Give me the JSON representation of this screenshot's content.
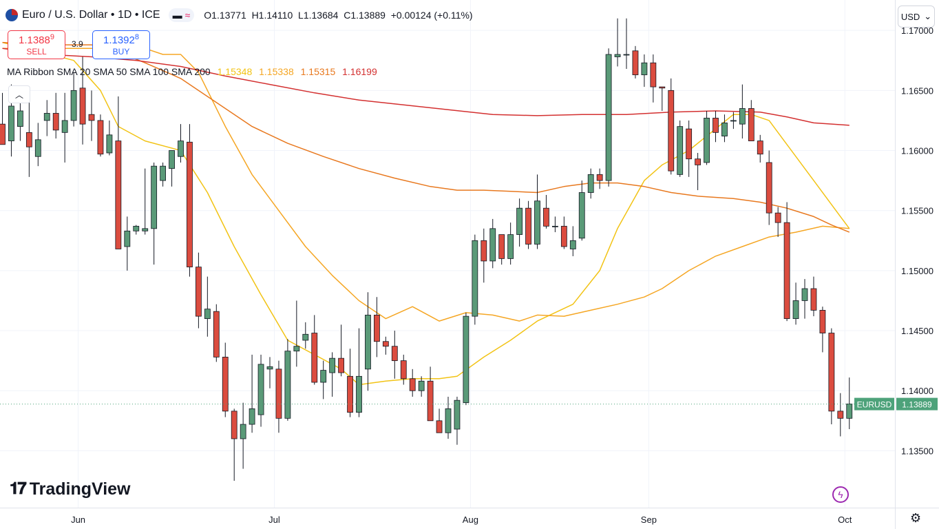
{
  "header": {
    "symbol_title": "Euro / U.S. Dollar • 1D • ICE",
    "ohlc": {
      "open": "O1.13771",
      "high": "H1.14110",
      "low": "L1.13684",
      "close": "C1.13889",
      "change": "+0.00124 (+0.11%)"
    }
  },
  "trade": {
    "sell_price_main": "1.1388",
    "sell_price_sup": "9",
    "sell_label": "SELL",
    "spread": "3.9",
    "buy_price_main": "1.1392",
    "buy_price_sup": "8",
    "buy_label": "BUY"
  },
  "indicator": {
    "label": "MA Ribbon SMA 20 SMA 50 SMA 100 SMA 200",
    "values": [
      "1.15348",
      "1.15338",
      "1.15315",
      "1.16199"
    ],
    "colors": [
      "#f2c314",
      "#f5a623",
      "#e8781e",
      "#d32f2f"
    ]
  },
  "currency_button": {
    "label": "USD",
    "icon": "chevron-down-icon"
  },
  "branding": {
    "logo_text": "TradingView"
  },
  "colors": {
    "up": "#5a9a78",
    "down": "#db4c3f",
    "price_tag": "#4da27a",
    "sma20": "#f2c314",
    "sma50": "#f5a623",
    "sma100": "#e8781e",
    "sma200": "#d32f2f",
    "grid": "#f0f3fa"
  },
  "chart_data": {
    "type": "candlestick",
    "symbol": "EURUSD",
    "last_price": 1.13889,
    "ylim": [
      1.1325,
      1.1715
    ],
    "y_ticks": [
      {
        "value": 1.135,
        "label": "1.13500"
      },
      {
        "value": 1.14,
        "label": "1.14000"
      },
      {
        "value": 1.145,
        "label": "1.14500"
      },
      {
        "value": 1.15,
        "label": "1.15000"
      },
      {
        "value": 1.155,
        "label": "1.15500"
      },
      {
        "value": 1.16,
        "label": "1.16000"
      },
      {
        "value": 1.165,
        "label": "1.16500"
      },
      {
        "value": 1.17,
        "label": "1.17000"
      }
    ],
    "x_ticks": [
      {
        "label": "Jun",
        "index": 8.5
      },
      {
        "label": "Jul",
        "index": 30.5
      },
      {
        "label": "Aug",
        "index": 52.5
      },
      {
        "label": "Sep",
        "index": 72.5
      },
      {
        "label": "Oct",
        "index": 94.5
      }
    ],
    "candles": [
      {
        "o": 1.1622,
        "h": 1.1648,
        "l": 1.1605,
        "c": 1.1605
      },
      {
        "o": 1.1608,
        "h": 1.1655,
        "l": 1.1595,
        "c": 1.1637
      },
      {
        "o": 1.162,
        "h": 1.1652,
        "l": 1.1608,
        "c": 1.1633
      },
      {
        "o": 1.1615,
        "h": 1.164,
        "l": 1.1578,
        "c": 1.1603
      },
      {
        "o": 1.1595,
        "h": 1.1623,
        "l": 1.1587,
        "c": 1.1609
      },
      {
        "o": 1.1625,
        "h": 1.1642,
        "l": 1.1612,
        "c": 1.1631
      },
      {
        "o": 1.1631,
        "h": 1.1648,
        "l": 1.161,
        "c": 1.1617
      },
      {
        "o": 1.1615,
        "h": 1.1648,
        "l": 1.159,
        "c": 1.1625
      },
      {
        "o": 1.1625,
        "h": 1.1665,
        "l": 1.162,
        "c": 1.165
      },
      {
        "o": 1.1652,
        "h": 1.1678,
        "l": 1.1605,
        "c": 1.1622
      },
      {
        "o": 1.163,
        "h": 1.165,
        "l": 1.1608,
        "c": 1.1625
      },
      {
        "o": 1.1625,
        "h": 1.163,
        "l": 1.1595,
        "c": 1.1597
      },
      {
        "o": 1.1598,
        "h": 1.1625,
        "l": 1.1596,
        "c": 1.1613
      },
      {
        "o": 1.1608,
        "h": 1.1645,
        "l": 1.152,
        "c": 1.1518
      },
      {
        "o": 1.152,
        "h": 1.1545,
        "l": 1.15,
        "c": 1.1533
      },
      {
        "o": 1.1533,
        "h": 1.1538,
        "l": 1.153,
        "c": 1.1537
      },
      {
        "o": 1.1533,
        "h": 1.1585,
        "l": 1.153,
        "c": 1.1535
      },
      {
        "o": 1.1535,
        "h": 1.159,
        "l": 1.1505,
        "c": 1.1587
      },
      {
        "o": 1.1575,
        "h": 1.159,
        "l": 1.157,
        "c": 1.1587
      },
      {
        "o": 1.1585,
        "h": 1.16,
        "l": 1.157,
        "c": 1.16
      },
      {
        "o": 1.1595,
        "h": 1.1622,
        "l": 1.159,
        "c": 1.1608
      },
      {
        "o": 1.1607,
        "h": 1.1622,
        "l": 1.1495,
        "c": 1.1503
      },
      {
        "o": 1.1503,
        "h": 1.1515,
        "l": 1.1452,
        "c": 1.1462
      },
      {
        "o": 1.146,
        "h": 1.1495,
        "l": 1.1445,
        "c": 1.1468
      },
      {
        "o": 1.1466,
        "h": 1.1472,
        "l": 1.1424,
        "c": 1.1428
      },
      {
        "o": 1.1428,
        "h": 1.144,
        "l": 1.1378,
        "c": 1.1383
      },
      {
        "o": 1.1383,
        "h": 1.1385,
        "l": 1.1325,
        "c": 1.136
      },
      {
        "o": 1.136,
        "h": 1.139,
        "l": 1.1335,
        "c": 1.1372
      },
      {
        "o": 1.1372,
        "h": 1.143,
        "l": 1.1365,
        "c": 1.1385
      },
      {
        "o": 1.138,
        "h": 1.143,
        "l": 1.137,
        "c": 1.1422
      },
      {
        "o": 1.1418,
        "h": 1.1428,
        "l": 1.1402,
        "c": 1.142
      },
      {
        "o": 1.1418,
        "h": 1.1425,
        "l": 1.1365,
        "c": 1.1377
      },
      {
        "o": 1.1377,
        "h": 1.1443,
        "l": 1.1375,
        "c": 1.1433
      },
      {
        "o": 1.1433,
        "h": 1.1475,
        "l": 1.142,
        "c": 1.1437
      },
      {
        "o": 1.1442,
        "h": 1.1457,
        "l": 1.1435,
        "c": 1.1447
      },
      {
        "o": 1.1448,
        "h": 1.1463,
        "l": 1.1405,
        "c": 1.1407
      },
      {
        "o": 1.1407,
        "h": 1.1425,
        "l": 1.1393,
        "c": 1.1417
      },
      {
        "o": 1.1415,
        "h": 1.1432,
        "l": 1.1395,
        "c": 1.1427
      },
      {
        "o": 1.1427,
        "h": 1.1455,
        "l": 1.1412,
        "c": 1.1415
      },
      {
        "o": 1.1412,
        "h": 1.1435,
        "l": 1.1378,
        "c": 1.1382
      },
      {
        "o": 1.1382,
        "h": 1.1452,
        "l": 1.1378,
        "c": 1.1412
      },
      {
        "o": 1.1418,
        "h": 1.1482,
        "l": 1.14,
        "c": 1.1463
      },
      {
        "o": 1.1463,
        "h": 1.1478,
        "l": 1.1428,
        "c": 1.1441
      },
      {
        "o": 1.1441,
        "h": 1.1445,
        "l": 1.143,
        "c": 1.1437
      },
      {
        "o": 1.1437,
        "h": 1.145,
        "l": 1.141,
        "c": 1.1425
      },
      {
        "o": 1.1425,
        "h": 1.143,
        "l": 1.1405,
        "c": 1.141
      },
      {
        "o": 1.141,
        "h": 1.1418,
        "l": 1.1395,
        "c": 1.14
      },
      {
        "o": 1.14,
        "h": 1.1412,
        "l": 1.1395,
        "c": 1.1408
      },
      {
        "o": 1.1408,
        "h": 1.142,
        "l": 1.1375,
        "c": 1.1375
      },
      {
        "o": 1.1375,
        "h": 1.1385,
        "l": 1.1365,
        "c": 1.1365
      },
      {
        "o": 1.1365,
        "h": 1.1395,
        "l": 1.136,
        "c": 1.1385
      },
      {
        "o": 1.1368,
        "h": 1.1395,
        "l": 1.1355,
        "c": 1.1392
      },
      {
        "o": 1.139,
        "h": 1.1465,
        "l": 1.1388,
        "c": 1.1462
      },
      {
        "o": 1.1462,
        "h": 1.153,
        "l": 1.1455,
        "c": 1.1525
      },
      {
        "o": 1.1525,
        "h": 1.1535,
        "l": 1.149,
        "c": 1.1508
      },
      {
        "o": 1.1508,
        "h": 1.1543,
        "l": 1.1502,
        "c": 1.1535
      },
      {
        "o": 1.153,
        "h": 1.153,
        "l": 1.1505,
        "c": 1.151
      },
      {
        "o": 1.151,
        "h": 1.154,
        "l": 1.1505,
        "c": 1.153
      },
      {
        "o": 1.153,
        "h": 1.156,
        "l": 1.152,
        "c": 1.1552
      },
      {
        "o": 1.1552,
        "h": 1.1558,
        "l": 1.1518,
        "c": 1.1522
      },
      {
        "o": 1.1522,
        "h": 1.158,
        "l": 1.1518,
        "c": 1.1558
      },
      {
        "o": 1.1552,
        "h": 1.1563,
        "l": 1.1535,
        "c": 1.1537
      },
      {
        "o": 1.1537,
        "h": 1.1545,
        "l": 1.1532,
        "c": 1.1537
      },
      {
        "o": 1.1537,
        "h": 1.1545,
        "l": 1.1518,
        "c": 1.152
      },
      {
        "o": 1.1518,
        "h": 1.1537,
        "l": 1.1512,
        "c": 1.1525
      },
      {
        "o": 1.1527,
        "h": 1.1575,
        "l": 1.1525,
        "c": 1.1565
      },
      {
        "o": 1.1565,
        "h": 1.1585,
        "l": 1.156,
        "c": 1.158
      },
      {
        "o": 1.158,
        "h": 1.1585,
        "l": 1.1568,
        "c": 1.1575
      },
      {
        "o": 1.1575,
        "h": 1.1685,
        "l": 1.157,
        "c": 1.168
      },
      {
        "o": 1.1678,
        "h": 1.171,
        "l": 1.167,
        "c": 1.168
      },
      {
        "o": 1.168,
        "h": 1.171,
        "l": 1.1668,
        "c": 1.168
      },
      {
        "o": 1.1683,
        "h": 1.1687,
        "l": 1.166,
        "c": 1.1663
      },
      {
        "o": 1.1663,
        "h": 1.168,
        "l": 1.1653,
        "c": 1.1673
      },
      {
        "o": 1.1673,
        "h": 1.168,
        "l": 1.164,
        "c": 1.1653
      },
      {
        "o": 1.1653,
        "h": 1.1653,
        "l": 1.1633,
        "c": 1.1652
      },
      {
        "o": 1.165,
        "h": 1.166,
        "l": 1.158,
        "c": 1.1583
      },
      {
        "o": 1.158,
        "h": 1.1625,
        "l": 1.1578,
        "c": 1.162
      },
      {
        "o": 1.1618,
        "h": 1.1625,
        "l": 1.1578,
        "c": 1.1593
      },
      {
        "o": 1.1593,
        "h": 1.1598,
        "l": 1.1567,
        "c": 1.1588
      },
      {
        "o": 1.159,
        "h": 1.1633,
        "l": 1.1588,
        "c": 1.1627
      },
      {
        "o": 1.1627,
        "h": 1.1633,
        "l": 1.1607,
        "c": 1.1615
      },
      {
        "o": 1.1612,
        "h": 1.163,
        "l": 1.1607,
        "c": 1.1623
      },
      {
        "o": 1.1625,
        "h": 1.1632,
        "l": 1.1618,
        "c": 1.1625
      },
      {
        "o": 1.1622,
        "h": 1.1655,
        "l": 1.161,
        "c": 1.1635
      },
      {
        "o": 1.1635,
        "h": 1.1642,
        "l": 1.161,
        "c": 1.1608
      },
      {
        "o": 1.1608,
        "h": 1.1613,
        "l": 1.159,
        "c": 1.1597
      },
      {
        "o": 1.159,
        "h": 1.16,
        "l": 1.1538,
        "c": 1.1548
      },
      {
        "o": 1.1548,
        "h": 1.1553,
        "l": 1.1528,
        "c": 1.154
      },
      {
        "o": 1.154,
        "h": 1.1557,
        "l": 1.1458,
        "c": 1.146
      },
      {
        "o": 1.146,
        "h": 1.149,
        "l": 1.1455,
        "c": 1.1475
      },
      {
        "o": 1.1475,
        "h": 1.1493,
        "l": 1.146,
        "c": 1.1485
      },
      {
        "o": 1.1485,
        "h": 1.1495,
        "l": 1.1462,
        "c": 1.1467
      },
      {
        "o": 1.1467,
        "h": 1.147,
        "l": 1.1432,
        "c": 1.1448
      },
      {
        "o": 1.1448,
        "h": 1.1452,
        "l": 1.1372,
        "c": 1.1383
      },
      {
        "o": 1.1383,
        "h": 1.1398,
        "l": 1.1362,
        "c": 1.1377
      },
      {
        "o": 1.1377,
        "h": 1.1411,
        "l": 1.1368,
        "c": 1.1389
      }
    ],
    "series": [
      {
        "name": "SMA 20",
        "values": [
          [
            0,
            1.169
          ],
          [
            8,
            1.1675
          ],
          [
            11,
            1.165
          ],
          [
            13,
            1.162
          ],
          [
            16,
            1.1608
          ],
          [
            20,
            1.16
          ],
          [
            23,
            1.1565
          ],
          [
            26,
            1.152
          ],
          [
            29,
            1.148
          ],
          [
            32,
            1.1442
          ],
          [
            35,
            1.143
          ],
          [
            38,
            1.1418
          ],
          [
            40,
            1.1405
          ],
          [
            43,
            1.1408
          ],
          [
            46,
            1.141
          ],
          [
            49,
            1.141
          ],
          [
            51,
            1.1412
          ],
          [
            54,
            1.1428
          ],
          [
            57,
            1.1442
          ],
          [
            60,
            1.1458
          ],
          [
            64,
            1.1472
          ],
          [
            67,
            1.15
          ],
          [
            69,
            1.1535
          ],
          [
            72,
            1.1575
          ],
          [
            74,
            1.1588
          ],
          [
            77,
            1.16
          ],
          [
            80,
            1.1618
          ],
          [
            82,
            1.163
          ],
          [
            84,
            1.163
          ],
          [
            86,
            1.1625
          ],
          [
            88,
            1.1605
          ],
          [
            91,
            1.1575
          ],
          [
            94,
            1.1545
          ],
          [
            95,
            1.1535
          ]
        ]
      },
      {
        "name": "SMA 50",
        "values": [
          [
            0,
            1.1685
          ],
          [
            8,
            1.1685
          ],
          [
            13,
            1.1685
          ],
          [
            16,
            1.1685
          ],
          [
            18,
            1.168
          ],
          [
            20,
            1.168
          ],
          [
            22,
            1.1665
          ],
          [
            25,
            1.162
          ],
          [
            28,
            1.158
          ],
          [
            31,
            1.155
          ],
          [
            34,
            1.152
          ],
          [
            37,
            1.1496
          ],
          [
            40,
            1.1475
          ],
          [
            43,
            1.146
          ],
          [
            46,
            1.147
          ],
          [
            49,
            1.1458
          ],
          [
            52,
            1.1465
          ],
          [
            55,
            1.1463
          ],
          [
            58,
            1.1458
          ],
          [
            60,
            1.1463
          ],
          [
            63,
            1.1462
          ],
          [
            66,
            1.1467
          ],
          [
            69,
            1.1472
          ],
          [
            72,
            1.1478
          ],
          [
            74,
            1.1485
          ],
          [
            77,
            1.15
          ],
          [
            80,
            1.1512
          ],
          [
            83,
            1.152
          ],
          [
            86,
            1.1528
          ],
          [
            89,
            1.1532
          ],
          [
            92,
            1.1537
          ],
          [
            95,
            1.1535
          ]
        ]
      },
      {
        "name": "SMA 100",
        "values": [
          [
            0,
            1.169
          ],
          [
            5,
            1.1688
          ],
          [
            10,
            1.1688
          ],
          [
            13,
            1.1682
          ],
          [
            16,
            1.1673
          ],
          [
            20,
            1.166
          ],
          [
            24,
            1.164
          ],
          [
            28,
            1.162
          ],
          [
            32,
            1.1606
          ],
          [
            36,
            1.1595
          ],
          [
            40,
            1.1585
          ],
          [
            44,
            1.1577
          ],
          [
            48,
            1.157
          ],
          [
            51,
            1.1567
          ],
          [
            54,
            1.1567
          ],
          [
            57,
            1.1566
          ],
          [
            60,
            1.1565
          ],
          [
            63,
            1.157
          ],
          [
            66,
            1.1573
          ],
          [
            69,
            1.1573
          ],
          [
            72,
            1.157
          ],
          [
            75,
            1.1565
          ],
          [
            78,
            1.1562
          ],
          [
            82,
            1.156
          ],
          [
            85,
            1.1557
          ],
          [
            88,
            1.1552
          ],
          [
            91,
            1.1545
          ],
          [
            93,
            1.1538
          ],
          [
            95,
            1.1532
          ]
        ]
      },
      {
        "name": "SMA 200",
        "values": [
          [
            0,
            1.1685
          ],
          [
            5,
            1.168
          ],
          [
            10,
            1.1678
          ],
          [
            15,
            1.1675
          ],
          [
            20,
            1.167
          ],
          [
            25,
            1.1662
          ],
          [
            30,
            1.1655
          ],
          [
            35,
            1.1648
          ],
          [
            40,
            1.1642
          ],
          [
            45,
            1.1638
          ],
          [
            50,
            1.1634
          ],
          [
            55,
            1.163
          ],
          [
            60,
            1.1629
          ],
          [
            65,
            1.163
          ],
          [
            70,
            1.163
          ],
          [
            75,
            1.1632
          ],
          [
            80,
            1.1633
          ],
          [
            85,
            1.1632
          ],
          [
            88,
            1.1628
          ],
          [
            91,
            1.1623
          ],
          [
            95,
            1.1621
          ]
        ]
      }
    ]
  }
}
